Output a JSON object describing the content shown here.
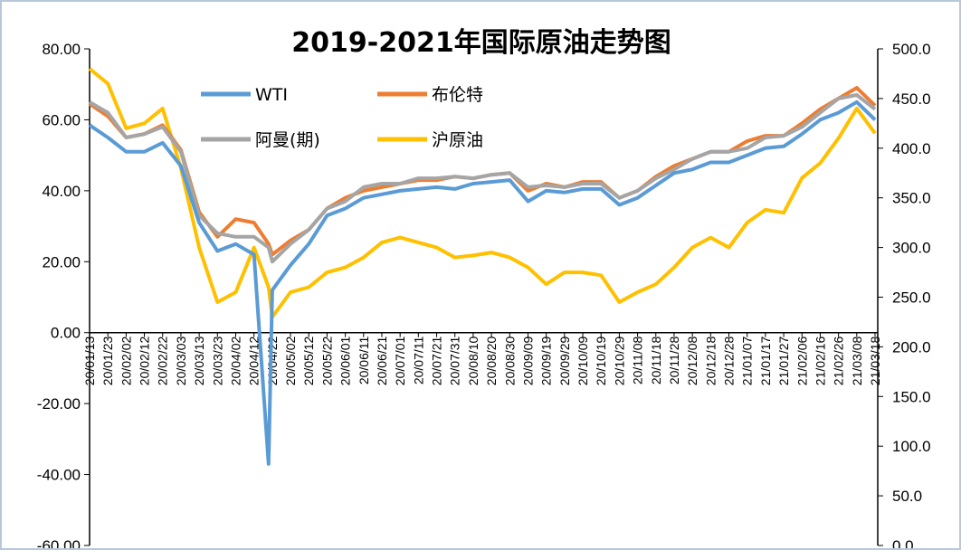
{
  "chart_data": {
    "type": "line",
    "title": "2019-2021年国际原油走势图",
    "legend_placement": "top-left",
    "grid": false,
    "y_left": {
      "range": [
        -60,
        80
      ],
      "ticks": [
        "80.00",
        "60.00",
        "40.00",
        "20.00",
        "0.00",
        "-20.00",
        "-40.00",
        "-60.00"
      ],
      "tick_values": [
        80,
        60,
        40,
        20,
        0,
        -20,
        -40,
        -60
      ]
    },
    "y_right": {
      "range": [
        0,
        500
      ],
      "ticks": [
        "500.0",
        "450.0",
        "400.0",
        "350.0",
        "300.0",
        "250.0",
        "200.0",
        "150.0",
        "100.0",
        "50.0",
        "0.0"
      ],
      "tick_values": [
        500,
        450,
        400,
        350,
        300,
        250,
        200,
        150,
        100,
        50,
        0
      ]
    },
    "x_tick_labels": [
      "20/01/13",
      "20/01/23",
      "20/02/02",
      "20/02/12",
      "20/02/22",
      "20/03/03",
      "20/03/13",
      "20/03/23",
      "20/04/02",
      "20/04/12",
      "20/04/22",
      "20/05/02",
      "20/05/12",
      "20/05/22",
      "20/06/01",
      "20/06/11",
      "20/06/21",
      "20/07/01",
      "20/07/11",
      "20/07/21",
      "20/07/31",
      "20/08/10",
      "20/08/20",
      "20/08/30",
      "20/09/09",
      "20/09/19",
      "20/09/29",
      "20/10/09",
      "20/10/19",
      "20/10/29",
      "20/11/08",
      "20/11/18",
      "20/11/28",
      "20/12/08",
      "20/12/18",
      "20/12/28",
      "21/01/07",
      "21/01/17",
      "21/01/27",
      "21/02/06",
      "21/02/16",
      "21/02/26",
      "21/03/08",
      "21/03/18"
    ],
    "x": [
      "2020-01-13",
      "2020-01-23",
      "2020-02-02",
      "2020-02-12",
      "2020-02-22",
      "2020-03-03",
      "2020-03-13",
      "2020-03-23",
      "2020-04-02",
      "2020-04-12",
      "2020-04-20",
      "2020-04-22",
      "2020-05-02",
      "2020-05-12",
      "2020-05-22",
      "2020-06-01",
      "2020-06-11",
      "2020-06-21",
      "2020-07-01",
      "2020-07-11",
      "2020-07-21",
      "2020-07-31",
      "2020-08-10",
      "2020-08-20",
      "2020-08-30",
      "2020-09-09",
      "2020-09-19",
      "2020-09-29",
      "2020-10-09",
      "2020-10-19",
      "2020-10-29",
      "2020-11-08",
      "2020-11-18",
      "2020-11-28",
      "2020-12-08",
      "2020-12-18",
      "2020-12-28",
      "2021-01-07",
      "2021-01-17",
      "2021-01-27",
      "2021-02-06",
      "2021-02-16",
      "2021-02-26",
      "2021-03-08",
      "2021-03-18"
    ],
    "series": [
      {
        "name": "WTI",
        "axis": "left",
        "color": "#5b9bd5",
        "values": [
          58.5,
          55,
          51,
          51,
          53.5,
          47,
          31,
          23,
          25,
          22,
          -37,
          12,
          19,
          25,
          33,
          35,
          38,
          39,
          40,
          40.5,
          41,
          40.5,
          42,
          42.5,
          43,
          37,
          40,
          39.5,
          40.5,
          40.5,
          36,
          38,
          41.5,
          45,
          46,
          48,
          48,
          50,
          52,
          52.5,
          56,
          60,
          62,
          65,
          60
        ]
      },
      {
        "name": "布伦特",
        "axis": "left",
        "color": "#ed7d31",
        "values": [
          64.5,
          61,
          55,
          56,
          58.5,
          51.5,
          34,
          27,
          32,
          31,
          25,
          22,
          26,
          29,
          35,
          38,
          40,
          41,
          42,
          43,
          43,
          44,
          43.5,
          44.5,
          45,
          40,
          42,
          41,
          42.5,
          42.5,
          38,
          40,
          44,
          47,
          49,
          51,
          51,
          54,
          55.5,
          55.5,
          59,
          63,
          66,
          69,
          64
        ]
      },
      {
        "name": "阿曼(期)",
        "axis": "left",
        "color": "#a5a5a5",
        "values": [
          65,
          62,
          55,
          56,
          58,
          51,
          33,
          28,
          27,
          27,
          24,
          20,
          25,
          29,
          35,
          37,
          41,
          42,
          42,
          43.5,
          43.5,
          44,
          43.5,
          44.5,
          45,
          41,
          41.5,
          41,
          42,
          42,
          38,
          40,
          43.5,
          46,
          49,
          51,
          51,
          52,
          55,
          55.5,
          58,
          62,
          66,
          67,
          63
        ]
      },
      {
        "name": "沪原油",
        "axis": "right",
        "color": "#ffc000",
        "values": [
          480,
          465,
          420,
          425,
          440,
          380,
          300,
          245,
          255,
          300,
          260,
          230,
          255,
          260,
          275,
          280,
          290,
          305,
          310,
          305,
          300,
          290,
          292,
          295,
          290,
          280,
          263,
          275,
          275,
          272,
          245,
          255,
          263,
          280,
          300,
          310,
          300,
          325,
          338,
          335,
          370,
          385,
          410,
          440,
          415
        ]
      }
    ]
  }
}
